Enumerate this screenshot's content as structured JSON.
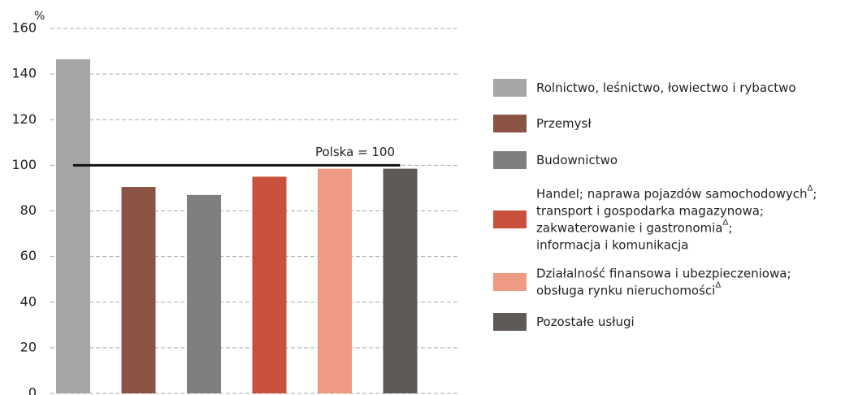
{
  "chart_data": {
    "type": "bar",
    "y_axis_label": "%",
    "ylim": [
      0,
      160
    ],
    "yticks": [
      0,
      20,
      40,
      60,
      80,
      100,
      120,
      140,
      160
    ],
    "grid": true,
    "legend": "right",
    "reference_line": {
      "value": 100,
      "label": "Polska = 100"
    },
    "series": [
      {
        "name": "Rolnictwo, leśnictwo, łowiectwo i rybactwo",
        "color": "#a6a6a6",
        "values": [
          146.5
        ]
      },
      {
        "name": "Przemysł",
        "color": "#8b5343",
        "values": [
          90.5
        ]
      },
      {
        "name": "Budownictwo",
        "color": "#7f7f7f",
        "values": [
          87
        ]
      },
      {
        "name": "Handel; naprawa pojazdów samochodowychΔ;\ntransport i gospodarka magazynowa;\nzakwaterowanie i gastronomiaΔ;\ninformacja i komunikacja",
        "color": "#c9503c",
        "values": [
          95
        ]
      },
      {
        "name": "Działalność finansowa i ubezpieczeniowa;\nobsługa rynku nieruchomościΔ",
        "color": "#ef9a82",
        "values": [
          98.5
        ]
      },
      {
        "name": "Pozostałe usługi",
        "color": "#5f5a58",
        "values": [
          98.5
        ]
      }
    ]
  }
}
